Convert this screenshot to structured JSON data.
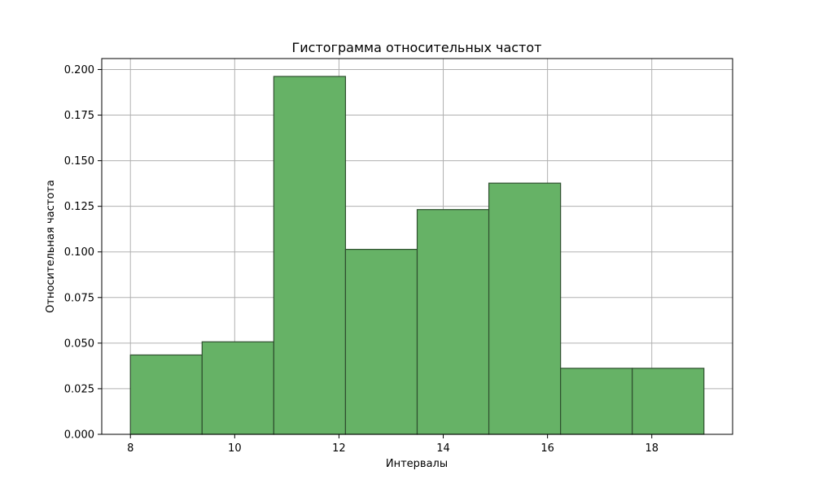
{
  "chart_data": {
    "type": "bar",
    "title": "Гистограмма относительных частот",
    "xlabel": "Интервалы",
    "ylabel": "Относительная частота",
    "bins": [
      {
        "start": 8.0,
        "end": 9.375,
        "value": 0.0435
      },
      {
        "start": 9.375,
        "end": 10.75,
        "value": 0.0507
      },
      {
        "start": 10.75,
        "end": 12.125,
        "value": 0.1962
      },
      {
        "start": 12.125,
        "end": 13.5,
        "value": 0.1014
      },
      {
        "start": 13.5,
        "end": 14.875,
        "value": 0.1232
      },
      {
        "start": 14.875,
        "end": 16.25,
        "value": 0.1377
      },
      {
        "start": 16.25,
        "end": 17.625,
        "value": 0.0362
      },
      {
        "start": 17.625,
        "end": 19.0,
        "value": 0.0362
      }
    ],
    "xlim": [
      7.45,
      19.55
    ],
    "ylim": [
      0,
      0.206
    ],
    "xticks": [
      8,
      10,
      12,
      14,
      16,
      18
    ],
    "xtick_labels": [
      "8",
      "10",
      "12",
      "14",
      "16",
      "18"
    ],
    "yticks": [
      0,
      0.025,
      0.05,
      0.075,
      0.1,
      0.125,
      0.15,
      0.175,
      0.2
    ],
    "ytick_labels": [
      "0.000",
      "0.025",
      "0.050",
      "0.075",
      "0.100",
      "0.125",
      "0.150",
      "0.175",
      "0.200"
    ],
    "grid": true,
    "bar_color": "#66b266",
    "edge_color": "#2f4f2f"
  }
}
